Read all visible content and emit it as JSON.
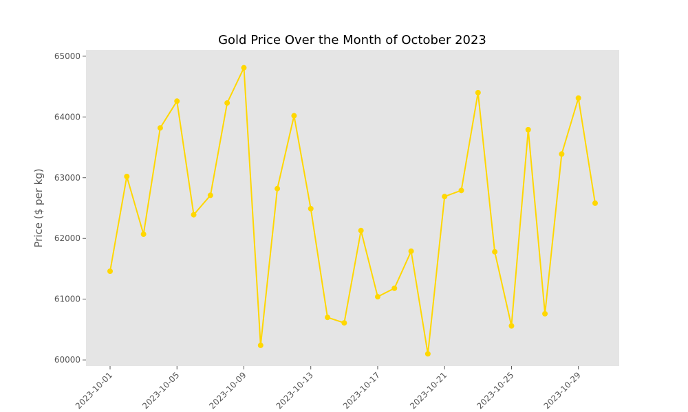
{
  "chart_data": {
    "type": "line",
    "title": "Gold Price Over the Month of October 2023",
    "xlabel": "",
    "ylabel": "Price ($ per kg)",
    "ylim": [
      59900,
      65100
    ],
    "grid": false,
    "legend": "none",
    "colors": {
      "line": "#FFD700",
      "plot_bg": "#E5E5E5",
      "tick": "#555555"
    },
    "x": [
      "2023-10-01",
      "2023-10-02",
      "2023-10-03",
      "2023-10-04",
      "2023-10-05",
      "2023-10-06",
      "2023-10-07",
      "2023-10-08",
      "2023-10-09",
      "2023-10-10",
      "2023-10-11",
      "2023-10-12",
      "2023-10-13",
      "2023-10-14",
      "2023-10-15",
      "2023-10-16",
      "2023-10-17",
      "2023-10-18",
      "2023-10-19",
      "2023-10-20",
      "2023-10-21",
      "2023-10-22",
      "2023-10-23",
      "2023-10-24",
      "2023-10-25",
      "2023-10-26",
      "2023-10-27",
      "2023-10-28",
      "2023-10-29",
      "2023-10-30"
    ],
    "series": [
      {
        "values": [
          61460,
          63020,
          62070,
          63820,
          64260,
          62390,
          62710,
          64230,
          64810,
          60240,
          62820,
          64020,
          62490,
          60700,
          60610,
          62130,
          61040,
          61180,
          61790,
          60100,
          62690,
          62790,
          64400,
          61780,
          60560,
          63790,
          60760,
          63390,
          64310,
          62580
        ]
      }
    ],
    "x_ticks": [
      "2023-10-01",
      "2023-10-05",
      "2023-10-09",
      "2023-10-13",
      "2023-10-17",
      "2023-10-21",
      "2023-10-25",
      "2023-10-29"
    ],
    "y_ticks": [
      "60000",
      "61000",
      "62000",
      "63000",
      "64000",
      "65000"
    ]
  }
}
